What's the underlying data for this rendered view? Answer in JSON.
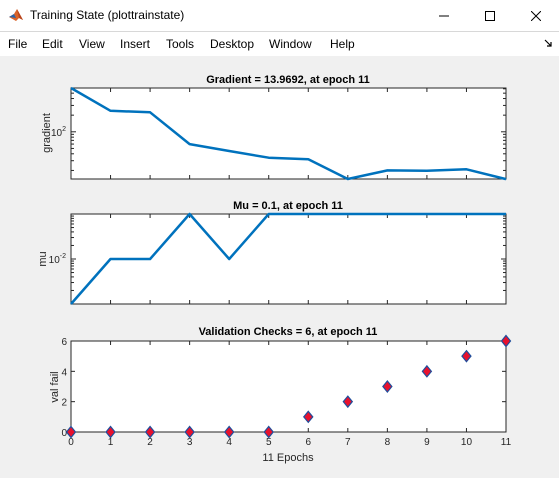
{
  "window": {
    "title": "Training State (plottrainstate)"
  },
  "menu": {
    "items": [
      "File",
      "Edit",
      "View",
      "Insert",
      "Tools",
      "Desktop",
      "Window",
      "Help"
    ]
  },
  "colors": {
    "line": "#0072bd",
    "marker_fill": "#e8112d",
    "marker_edge": "#1f4e9c",
    "figure_bg": "#f0f0f0"
  },
  "chart_data": [
    {
      "type": "line",
      "title": "Gradient = 13.9692, at epoch 11",
      "ylabel": "gradient",
      "yscale": "log",
      "ytick_labels": [
        "10^2"
      ],
      "x": [
        0,
        1,
        2,
        3,
        4,
        5,
        6,
        7,
        8,
        9,
        10,
        11
      ],
      "series": [
        {
          "values": [
            620,
            240,
            225,
            60,
            45,
            34,
            32,
            14,
            20,
            19.7,
            21,
            13.9692
          ]
        }
      ],
      "xlim": [
        0,
        11
      ],
      "ylim": [
        14,
        620
      ]
    },
    {
      "type": "line",
      "title": "Mu = 0.1, at epoch 11",
      "ylabel": "mu",
      "yscale": "log",
      "ytick_labels": [
        "10^-2"
      ],
      "x": [
        0,
        1,
        2,
        3,
        4,
        5,
        6,
        7,
        8,
        9,
        10,
        11
      ],
      "series": [
        {
          "values": [
            0.001,
            0.01,
            0.01,
            0.1,
            0.01,
            0.1,
            0.1,
            0.1,
            0.1,
            0.1,
            0.1,
            0.1
          ]
        }
      ],
      "xlim": [
        0,
        11
      ],
      "ylim": [
        0.001,
        0.1
      ]
    },
    {
      "type": "scatter",
      "title": "Validation Checks = 6, at epoch 11",
      "ylabel": "val fail",
      "xlabel": "11 Epochs",
      "x": [
        0,
        1,
        2,
        3,
        4,
        5,
        6,
        7,
        8,
        9,
        10,
        11
      ],
      "series": [
        {
          "values": [
            0,
            0,
            0,
            0,
            0,
            0,
            1,
            2,
            3,
            4,
            5,
            6
          ]
        }
      ],
      "xticks": [
        "0",
        "1",
        "2",
        "3",
        "4",
        "5",
        "6",
        "7",
        "8",
        "9",
        "10",
        "11"
      ],
      "yticks": [
        "0",
        "2",
        "4",
        "6"
      ],
      "xlim": [
        0,
        11
      ],
      "ylim": [
        0,
        6
      ]
    }
  ]
}
